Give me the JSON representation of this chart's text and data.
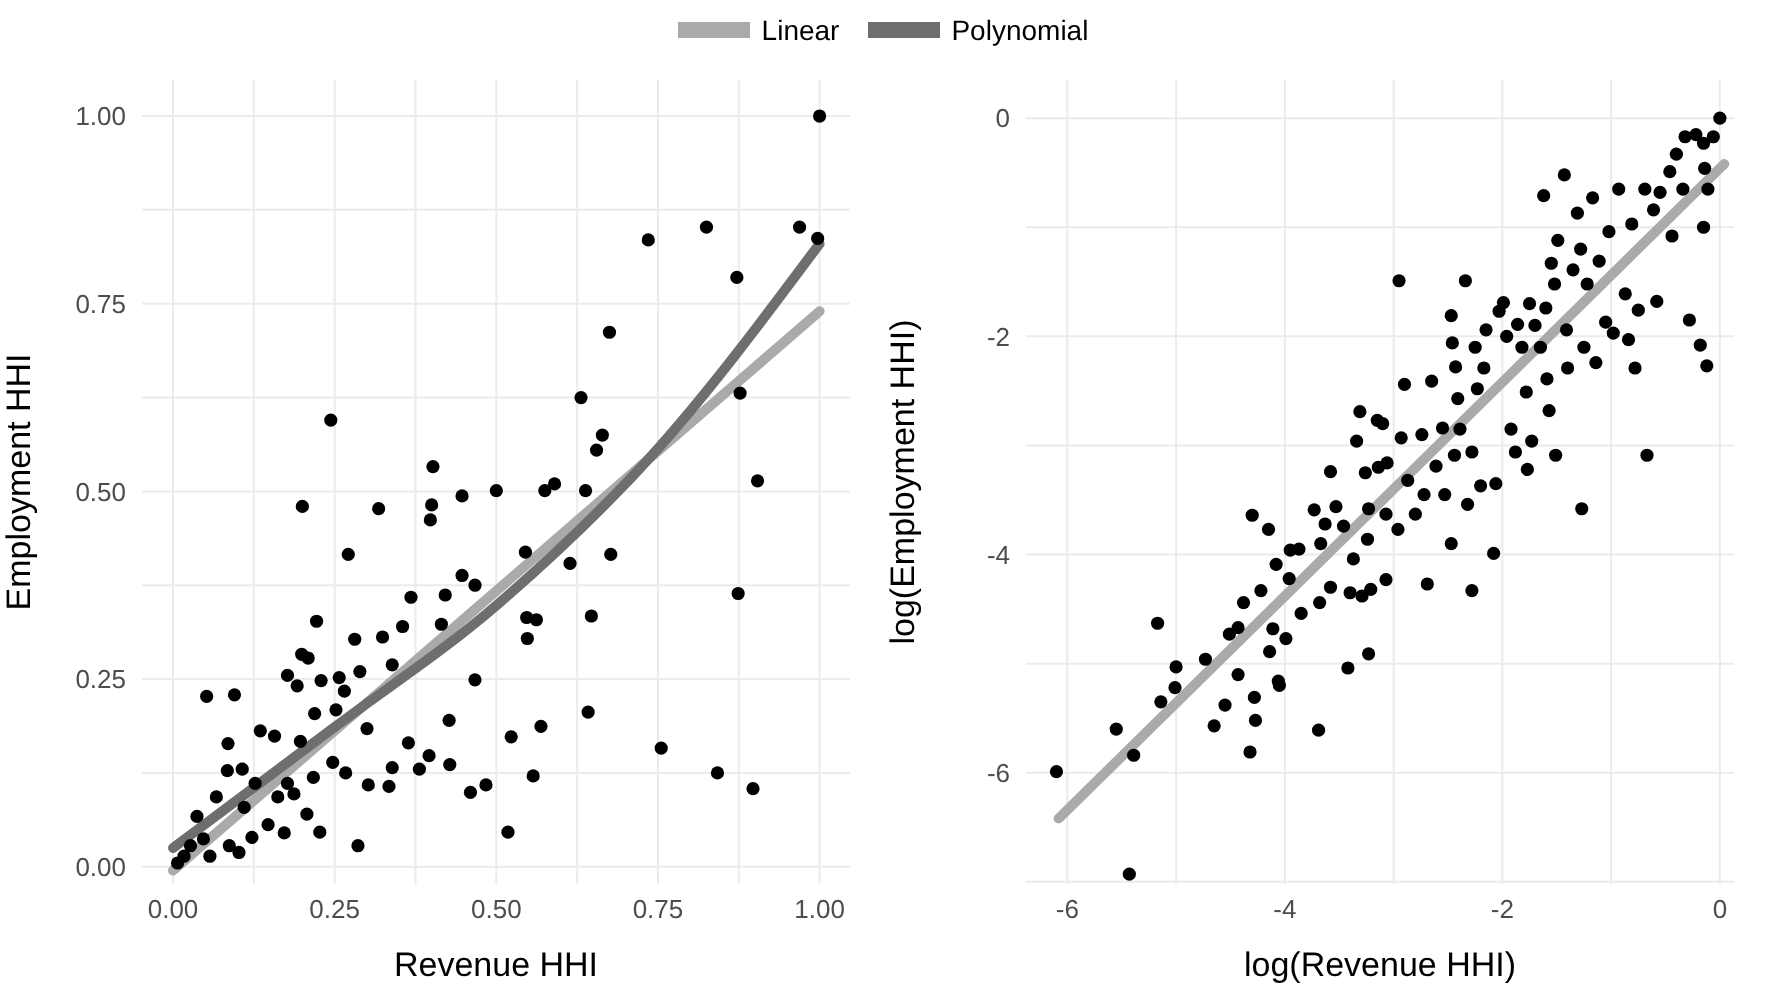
{
  "chart_data": [
    {
      "type": "scatter",
      "xlabel": "Revenue HHI",
      "ylabel": "Employment HHI",
      "xlim": [
        -0.048,
        1.047
      ],
      "ylim": [
        -0.023,
        1.048
      ],
      "xticks": [
        {
          "value": 0,
          "label": "0.00"
        },
        {
          "value": 0.125,
          "label": null
        },
        {
          "value": 0.25,
          "label": "0.25"
        },
        {
          "value": 0.375,
          "label": null
        },
        {
          "value": 0.5,
          "label": "0.50"
        },
        {
          "value": 0.625,
          "label": null
        },
        {
          "value": 0.75,
          "label": "0.75"
        },
        {
          "value": 0.875,
          "label": null
        },
        {
          "value": 1,
          "label": "1.00"
        }
      ],
      "yticks": [
        {
          "value": 0,
          "label": "0.00"
        },
        {
          "value": 0.125,
          "label": null
        },
        {
          "value": 0.25,
          "label": "0.25"
        },
        {
          "value": 0.375,
          "label": null
        },
        {
          "value": 0.5,
          "label": "0.50"
        },
        {
          "value": 0.625,
          "label": null
        },
        {
          "value": 0.75,
          "label": "0.75"
        },
        {
          "value": 0.875,
          "label": null
        },
        {
          "value": 1,
          "label": "1.00"
        }
      ],
      "grid": true,
      "legend": "top",
      "series": [
        {
          "marker": "circle",
          "color": "#000000",
          "x": [
            1.0,
            0.735,
            0.825,
            0.969,
            0.997,
            0.872,
            0.675,
            0.631,
            0.877,
            0.244,
            0.664,
            0.655,
            0.904,
            0.402,
            0.2,
            0.318,
            0.4,
            0.398,
            0.447,
            0.5,
            0.575,
            0.59,
            0.638,
            0.271,
            0.545,
            0.614,
            0.677,
            0.447,
            0.467,
            0.368,
            0.421,
            0.355,
            0.415,
            0.547,
            0.562,
            0.647,
            0.548,
            0.222,
            0.281,
            0.324,
            0.339,
            0.467,
            0.874,
            0.642,
            0.569,
            0.523,
            0.427,
            0.755,
            0.842,
            0.897,
            0.557,
            0.484,
            0.46,
            0.518,
            0.286,
            0.428,
            0.381,
            0.364,
            0.396,
            0.339,
            0.334,
            0.302,
            0.052,
            0.095,
            0.085,
            0.199,
            0.209,
            0.177,
            0.192,
            0.229,
            0.257,
            0.265,
            0.289,
            0.219,
            0.252,
            0.3,
            0.135,
            0.157,
            0.197,
            0.247,
            0.267,
            0.217,
            0.084,
            0.107,
            0.127,
            0.067,
            0.207,
            0.227,
            0.172,
            0.102,
            0.037,
            0.047,
            0.017,
            0.027,
            0.147,
            0.122,
            0.087,
            0.162,
            0.177,
            0.007,
            0.057,
            0.187,
            0.11
          ],
          "values": [
            1.0,
            0.835,
            0.852,
            0.852,
            0.837,
            0.785,
            0.712,
            0.625,
            0.631,
            0.595,
            0.575,
            0.555,
            0.514,
            0.533,
            0.48,
            0.477,
            0.482,
            0.462,
            0.494,
            0.501,
            0.501,
            0.51,
            0.501,
            0.416,
            0.419,
            0.404,
            0.416,
            0.388,
            0.375,
            0.359,
            0.362,
            0.32,
            0.323,
            0.332,
            0.329,
            0.334,
            0.304,
            0.327,
            0.303,
            0.306,
            0.269,
            0.249,
            0.364,
            0.206,
            0.187,
            0.173,
            0.195,
            0.158,
            0.125,
            0.104,
            0.121,
            0.109,
            0.099,
            0.046,
            0.028,
            0.136,
            0.13,
            0.165,
            0.148,
            0.132,
            0.107,
            0.109,
            0.227,
            0.229,
            0.164,
            0.283,
            0.278,
            0.255,
            0.241,
            0.248,
            0.252,
            0.234,
            0.26,
            0.204,
            0.209,
            0.184,
            0.181,
            0.174,
            0.167,
            0.139,
            0.125,
            0.119,
            0.128,
            0.13,
            0.111,
            0.093,
            0.07,
            0.046,
            0.045,
            0.019,
            0.067,
            0.037,
            0.014,
            0.028,
            0.056,
            0.039,
            0.028,
            0.093,
            0.111,
            0.005,
            0.014,
            0.097,
            0.079
          ]
        },
        {
          "type": "line",
          "name": "Linear",
          "color": "#aaaaaa",
          "x": [
            0,
            1
          ],
          "values": [
            -0.005,
            0.74
          ]
        },
        {
          "type": "line",
          "name": "Polynomial",
          "color": "#6e6e70",
          "x": [
            0,
            0.25,
            0.5,
            0.75,
            1
          ],
          "values": [
            0.025,
            0.186,
            0.348,
            0.557,
            0.83
          ]
        }
      ]
    },
    {
      "type": "scatter",
      "xlabel": "log(Revenue HHI)",
      "ylabel": "log(Employment HHI)",
      "xlim": [
        -6.38,
        0.13
      ],
      "ylim": [
        -7.02,
        0.35
      ],
      "xticks": [
        -6,
        {
          "value": -5,
          "label": null
        },
        -4,
        {
          "value": -3,
          "label": null
        },
        -2,
        {
          "value": -1,
          "label": null
        },
        0
      ],
      "yticks": [
        {
          "value": -7,
          "label": null
        },
        -6,
        {
          "value": -5,
          "label": null
        },
        -4,
        {
          "value": -3,
          "label": null
        },
        -2,
        {
          "value": -1,
          "label": null
        },
        0
      ],
      "grid": true,
      "series": [
        {
          "marker": "circle",
          "color": "#000000",
          "x": [
            0,
            -6.1,
            -5.43,
            -5.55,
            -5.39,
            -5.17,
            -5.14,
            -5.0,
            -5.01,
            -4.73,
            -4.65,
            -4.55,
            -4.43,
            -4.38,
            -4.3,
            -4.28,
            -4.27,
            -4.32,
            -4.51,
            -4.43,
            -4.22,
            -4.15,
            -4.14,
            -4.11,
            -4.08,
            -4.06,
            -4.05,
            -3.99,
            -3.96,
            -3.95,
            -3.87,
            -3.85,
            -3.73,
            -3.69,
            -3.68,
            -3.67,
            -3.63,
            -3.58,
            -3.58,
            -3.53,
            -3.46,
            -3.42,
            -3.4,
            -3.37,
            -3.34,
            -3.31,
            -3.29,
            -3.26,
            -3.24,
            -3.23,
            -3.23,
            -3.21,
            -3.15,
            -3.14,
            -3.1,
            -3.07,
            -3.07,
            -3.06,
            -2.96,
            -2.95,
            -2.93,
            -2.9,
            -2.87,
            -2.8,
            -2.74,
            -2.72,
            -2.69,
            -2.65,
            -2.61,
            -2.55,
            -2.53,
            -2.47,
            -2.47,
            -2.46,
            -2.44,
            -2.43,
            -2.41,
            -2.39,
            -2.34,
            -2.32,
            -2.28,
            -2.28,
            -2.25,
            -2.23,
            -2.2,
            -2.17,
            -2.15,
            -2.08,
            -2.06,
            -2.03,
            -1.99,
            -1.96,
            -1.92,
            -1.88,
            -1.86,
            -1.82,
            -1.78,
            -1.77,
            -1.75,
            -1.73,
            -1.7,
            -1.65,
            -1.62,
            -1.6,
            -1.59,
            -1.57,
            -1.55,
            -1.52,
            -1.51,
            -1.49,
            -1.43,
            -1.41,
            -1.4,
            -1.35,
            -1.31,
            -1.28,
            -1.27,
            -1.25,
            -1.22,
            -1.17,
            -1.14,
            -1.11,
            -1.05,
            -1.02,
            -0.98,
            -0.93,
            -0.87,
            -0.84,
            -0.81,
            -0.78,
            -0.75,
            -0.69,
            -0.67,
            -0.61,
            -0.58,
            -0.55,
            -0.46,
            -0.44,
            -0.4,
            -0.34,
            -0.32,
            -0.28,
            -0.22,
            -0.18,
            -0.15,
            -0.15,
            -0.14,
            -0.12,
            -0.11,
            -0.06
          ],
          "values": [
            0,
            -5.99,
            -6.93,
            -5.6,
            -5.84,
            -4.63,
            -5.35,
            -5.03,
            -5.22,
            -4.96,
            -5.57,
            -5.38,
            -5.1,
            -4.44,
            -3.64,
            -5.31,
            -5.52,
            -5.81,
            -4.73,
            -4.67,
            -4.33,
            -3.77,
            -4.89,
            -4.68,
            -4.09,
            -5.16,
            -5.2,
            -4.77,
            -4.22,
            -3.96,
            -3.95,
            -4.54,
            -3.59,
            -5.61,
            -4.44,
            -3.9,
            -3.72,
            -3.24,
            -4.3,
            -3.56,
            -3.74,
            -5.04,
            -4.35,
            -4.04,
            -2.96,
            -2.69,
            -4.38,
            -3.25,
            -3.86,
            -4.91,
            -3.58,
            -4.32,
            -2.77,
            -3.2,
            -2.8,
            -3.63,
            -4.23,
            -3.16,
            -3.77,
            -1.49,
            -2.93,
            -2.44,
            -3.32,
            -3.63,
            -2.9,
            -3.45,
            -4.27,
            -2.41,
            -3.19,
            -2.84,
            -3.45,
            -1.81,
            -3.9,
            -2.06,
            -3.09,
            -2.28,
            -2.57,
            -2.85,
            -1.49,
            -3.54,
            -4.33,
            -3.06,
            -2.1,
            -2.48,
            -3.37,
            -2.29,
            -1.94,
            -3.99,
            -3.35,
            -1.77,
            -1.69,
            -2.0,
            -2.85,
            -3.06,
            -1.89,
            -2.1,
            -2.51,
            -3.22,
            -1.7,
            -2.96,
            -1.9,
            -2.1,
            -0.71,
            -1.74,
            -2.39,
            -2.68,
            -1.33,
            -1.52,
            -3.09,
            -1.12,
            -0.52,
            -1.94,
            -2.29,
            -1.39,
            -0.87,
            -1.2,
            -3.58,
            -2.1,
            -1.52,
            -0.73,
            -2.24,
            -1.31,
            -1.87,
            -1.04,
            -1.97,
            -0.65,
            -1.61,
            -2.03,
            -0.97,
            -2.29,
            -1.76,
            -0.65,
            -3.09,
            -0.84,
            -1.68,
            -0.68,
            -0.49,
            -1.08,
            -0.33,
            -0.65,
            -0.17,
            -1.85,
            -0.15,
            -2.08,
            -0.23,
            -1.0,
            -0.46,
            -2.27,
            -0.65,
            -0.17
          ]
        },
        {
          "type": "line",
          "color": "#aaaaaa",
          "x": [
            -6.08,
            0.04
          ],
          "values": [
            -6.42,
            -0.42
          ]
        }
      ]
    }
  ]
}
